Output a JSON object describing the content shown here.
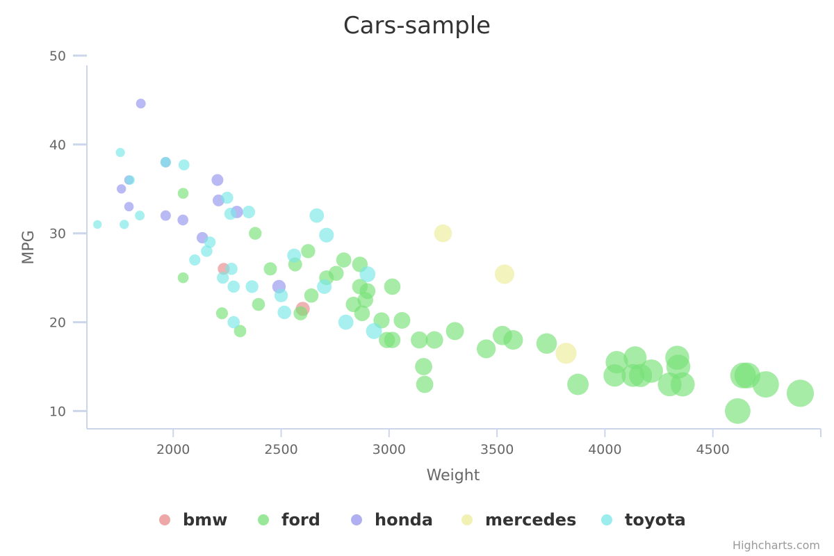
{
  "chart_data": {
    "type": "scatter",
    "title": "Cars-sample",
    "xlabel": "Weight",
    "ylabel": "MPG",
    "xlim": [
      1600,
      5000
    ],
    "ylim": [
      8,
      50
    ],
    "x_ticks": [
      2000,
      2500,
      3000,
      3500,
      4000,
      4500
    ],
    "y_ticks": [
      10,
      20,
      30,
      40,
      50
    ],
    "grid": false,
    "legend_position": "bottom",
    "credits": "Highcharts.com",
    "series": [
      {
        "name": "bmw",
        "color": "#e88a8a",
        "points": [
          [
            2234,
            26
          ],
          [
            2600,
            21.5
          ]
        ]
      },
      {
        "name": "ford",
        "color": "#77e077",
        "points": [
          [
            2046,
            25
          ],
          [
            2046,
            34.5
          ],
          [
            2226,
            21
          ],
          [
            2310,
            19
          ],
          [
            2380,
            30
          ],
          [
            2395,
            22
          ],
          [
            2450,
            26
          ],
          [
            2565,
            26.5
          ],
          [
            2590,
            21
          ],
          [
            2625,
            28
          ],
          [
            2640,
            23
          ],
          [
            2710,
            25
          ],
          [
            2755,
            25.5
          ],
          [
            2790,
            27
          ],
          [
            2835,
            22
          ],
          [
            2865,
            26.5
          ],
          [
            2875,
            21
          ],
          [
            2890,
            22.5
          ],
          [
            2865,
            24
          ],
          [
            2900,
            23.5
          ],
          [
            2965,
            20.2
          ],
          [
            2990,
            18
          ],
          [
            3015,
            18
          ],
          [
            3015,
            24
          ],
          [
            3060,
            20.2
          ],
          [
            3140,
            18
          ],
          [
            3160,
            15
          ],
          [
            3165,
            13
          ],
          [
            3210,
            18
          ],
          [
            3305,
            19
          ],
          [
            3450,
            17
          ],
          [
            3525,
            18.5
          ],
          [
            3575,
            18
          ],
          [
            3730,
            17.6
          ],
          [
            3875,
            13
          ],
          [
            4045,
            14
          ],
          [
            4055,
            15.5
          ],
          [
            4140,
            16
          ],
          [
            4130,
            14
          ],
          [
            4165,
            14
          ],
          [
            4215,
            14.5
          ],
          [
            4300,
            13
          ],
          [
            4335,
            16
          ],
          [
            4340,
            15
          ],
          [
            4360,
            13
          ],
          [
            4615,
            10
          ],
          [
            4640,
            14
          ],
          [
            4660,
            14
          ],
          [
            4745,
            13
          ],
          [
            4905,
            12
          ]
        ]
      },
      {
        "name": "honda",
        "color": "#9494ee",
        "points": [
          [
            1760,
            35
          ],
          [
            1795,
            33
          ],
          [
            1795,
            36
          ],
          [
            1850,
            44.6
          ],
          [
            1965,
            32
          ],
          [
            1965,
            38
          ],
          [
            2045,
            31.5
          ],
          [
            2135,
            29.5
          ],
          [
            2205,
            36
          ],
          [
            2210,
            33.7
          ],
          [
            2295,
            32.4
          ],
          [
            2490,
            24
          ]
        ]
      },
      {
        "name": "mercedes",
        "color": "#ecec99",
        "points": [
          [
            3250,
            30
          ],
          [
            3535,
            25.4
          ],
          [
            3820,
            16.5
          ]
        ]
      },
      {
        "name": "toyota",
        "color": "#7ae6e6",
        "points": [
          [
            1649,
            31
          ],
          [
            1755,
            39.1
          ],
          [
            1773,
            31
          ],
          [
            1800,
            36
          ],
          [
            1845,
            32
          ],
          [
            1965,
            38
          ],
          [
            2050,
            37.7
          ],
          [
            2100,
            27
          ],
          [
            2155,
            28
          ],
          [
            2170,
            29
          ],
          [
            2230,
            25
          ],
          [
            2250,
            34
          ],
          [
            2265,
            32.2
          ],
          [
            2270,
            26
          ],
          [
            2280,
            20
          ],
          [
            2280,
            24
          ],
          [
            2350,
            32.4
          ],
          [
            2365,
            24
          ],
          [
            2500,
            23
          ],
          [
            2515,
            21.1
          ],
          [
            2560,
            27.5
          ],
          [
            2665,
            32
          ],
          [
            2700,
            24
          ],
          [
            2710,
            29.8
          ],
          [
            2800,
            20
          ],
          [
            2900,
            25.4
          ],
          [
            2930,
            19
          ]
        ]
      }
    ]
  }
}
